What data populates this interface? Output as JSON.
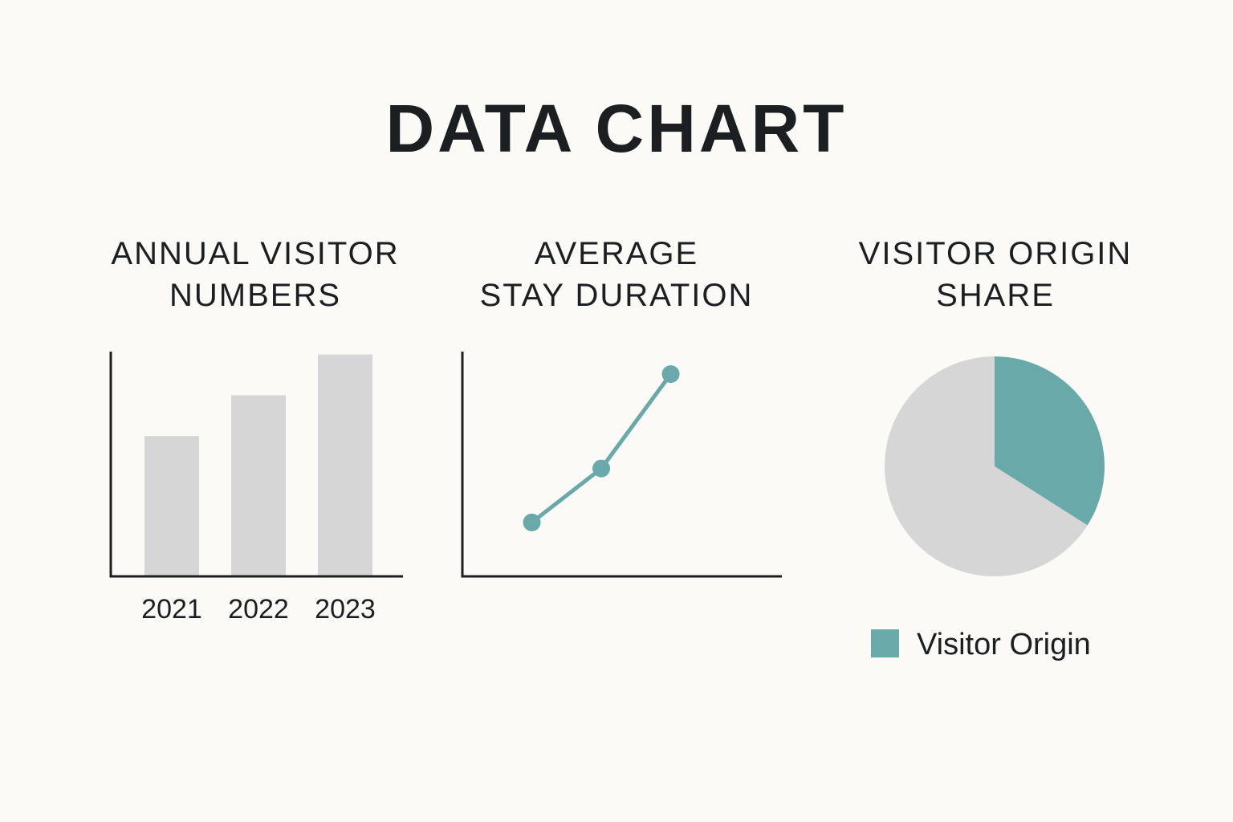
{
  "title": "DATA CHART",
  "colors": {
    "accent": "#6aa9aa",
    "neutral": "#d6d6d6",
    "axis": "#1b1f22"
  },
  "chart_data": [
    {
      "type": "bar",
      "title_lines": [
        "ANNUAL VISITOR",
        "NUMBERS"
      ],
      "categories": [
        "2021",
        "2022",
        "2023"
      ],
      "values": [
        62,
        80,
        98
      ],
      "ylim": [
        0,
        100
      ],
      "grid": false
    },
    {
      "type": "line",
      "title_lines": [
        "AVERAGE",
        "STAY DURATION"
      ],
      "x": [
        1,
        2,
        3
      ],
      "values": [
        24,
        48,
        90
      ],
      "xlim": [
        0,
        4.6
      ],
      "ylim": [
        0,
        100
      ],
      "grid": false
    },
    {
      "type": "pie",
      "title_lines": [
        "VISITOR ORIGIN",
        "SHARE"
      ],
      "slices": [
        {
          "name": "Visitor Origin",
          "value": 34,
          "color": "#6aa9aa"
        },
        {
          "value": 66,
          "color": "#d6d6d6"
        }
      ],
      "legend": {
        "position": "bottom",
        "entries": [
          "Visitor Origin"
        ]
      }
    }
  ]
}
